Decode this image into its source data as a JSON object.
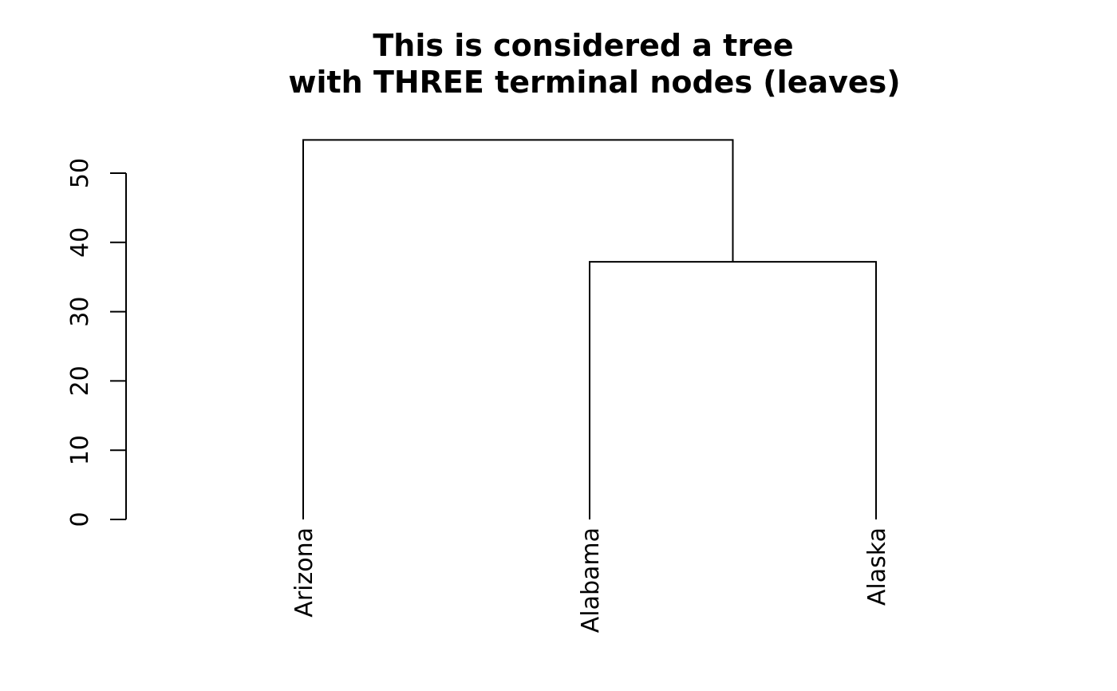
{
  "chart_data": {
    "type": "dendrogram",
    "title": [
      "This is considered a tree",
      "with THREE terminal nodes (leaves)"
    ],
    "ylabel": "",
    "xlabel": "",
    "ylim": [
      0,
      50
    ],
    "yticks": [
      0,
      10,
      20,
      30,
      40,
      50
    ],
    "leaves": [
      "Arizona",
      "Alabama",
      "Alaska"
    ],
    "merges": [
      {
        "left": "Alabama",
        "right": "Alaska",
        "height": 37.2
      },
      {
        "left": "Arizona",
        "right": "Alabama+Alaska",
        "height": 54.8
      }
    ],
    "line_color": "#000000"
  }
}
